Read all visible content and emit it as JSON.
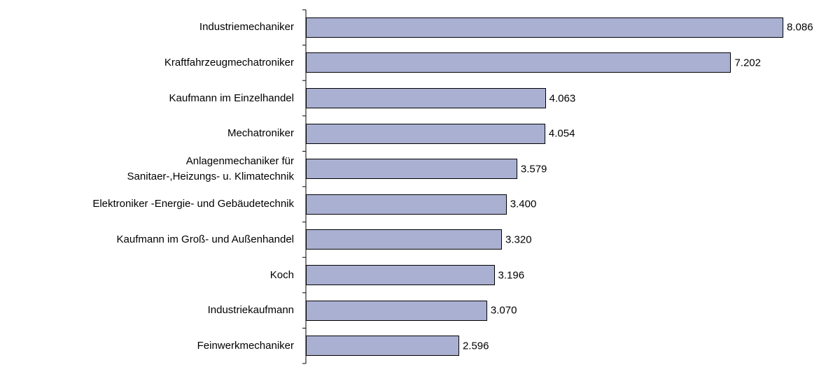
{
  "chart_data": {
    "type": "bar",
    "orientation": "horizontal",
    "categories": [
      "Industriemechaniker",
      "Kraftfahrzeugmechatroniker",
      "Kaufmann im Einzelhandel",
      "Mechatroniker",
      "Anlagenmechaniker für\nSanitaer-,Heizungs- u. Klimatechnik",
      "Elektroniker -Energie- und Gebäudetechnik",
      "Kaufmann im Groß- und Außenhandel",
      "Koch",
      "Industriekaufmann",
      "Feinwerkmechaniker"
    ],
    "values": [
      8086,
      7202,
      4063,
      4054,
      3579,
      3400,
      3320,
      3196,
      3070,
      2596
    ],
    "value_labels": [
      "8.086",
      "7.202",
      "4.063",
      "4.054",
      "3.579",
      "3.400",
      "3.320",
      "3.196",
      "3.070",
      "2.596"
    ],
    "color": "#aab0d2"
  }
}
